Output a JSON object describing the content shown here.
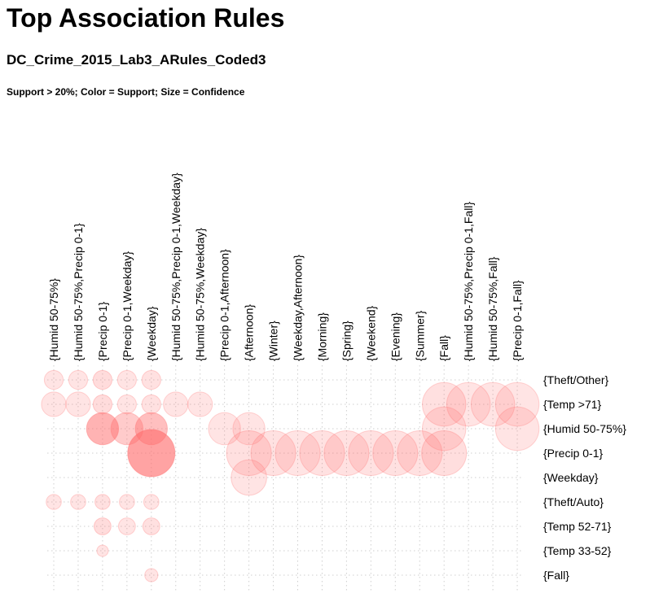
{
  "page": {
    "title": "Top Association Rules",
    "subtitle": "DC_Crime_2015_Lab3_ARules_Coded3",
    "note": "Support > 20%; Color = Support; Size = Confidence"
  },
  "chart_data": {
    "type": "scatter",
    "style": "grouped matrix bubble plot",
    "x_label_position": "top, rotated vertical",
    "y_label_position": "right",
    "grid": "dotted",
    "color": "#ff6b6b",
    "color_encodes": "Support",
    "size_encodes": "Confidence",
    "x_categories": [
      "{Humid 50-75%}",
      "{Humid 50-75%,Precip 0-1}",
      "{Precip 0-1}",
      "{Precip 0-1,Weekday}",
      "{Weekday}",
      "{Humid 50-75%,Precip 0-1,Weekday}",
      "{Humid 50-75%,Weekday}",
      "{Precip 0-1,Afternoon}",
      "{Afternoon}",
      "{Winter}",
      "{Weekday,Afternoon}",
      "{Morning}",
      "{Spring}",
      "{Weekend}",
      "{Evening}",
      "{Summer}",
      "{Fall}",
      "{Humid 50-75%,Precip 0-1,Fall}",
      "{Humid 50-75%,Fall}",
      "{Precip 0-1,Fall}"
    ],
    "y_categories": [
      "{Theft/Other}",
      "{Temp >71}",
      "{Humid 50-75%}",
      "{Precip 0-1}",
      "{Weekday}",
      "{Theft/Auto}",
      "{Temp 52-71}",
      "{Temp 33-52}",
      "{Fall}"
    ],
    "points": [
      {
        "x": 0,
        "y": 0,
        "size": 0.4,
        "color": 0.15
      },
      {
        "x": 1,
        "y": 0,
        "size": 0.4,
        "color": 0.15
      },
      {
        "x": 2,
        "y": 0,
        "size": 0.4,
        "color": 0.25
      },
      {
        "x": 3,
        "y": 0,
        "size": 0.4,
        "color": 0.15
      },
      {
        "x": 4,
        "y": 0,
        "size": 0.4,
        "color": 0.18
      },
      {
        "x": 0,
        "y": 1,
        "size": 0.52,
        "color": 0.15
      },
      {
        "x": 1,
        "y": 1,
        "size": 0.52,
        "color": 0.15
      },
      {
        "x": 2,
        "y": 1,
        "size": 0.4,
        "color": 0.25
      },
      {
        "x": 3,
        "y": 1,
        "size": 0.4,
        "color": 0.15
      },
      {
        "x": 4,
        "y": 1,
        "size": 0.4,
        "color": 0.18
      },
      {
        "x": 5,
        "y": 1,
        "size": 0.52,
        "color": 0.15
      },
      {
        "x": 6,
        "y": 1,
        "size": 0.52,
        "color": 0.15
      },
      {
        "x": 16,
        "y": 1,
        "size": 0.92,
        "color": 0.2
      },
      {
        "x": 17,
        "y": 1,
        "size": 0.92,
        "color": 0.15
      },
      {
        "x": 18,
        "y": 1,
        "size": 0.92,
        "color": 0.15
      },
      {
        "x": 19,
        "y": 1,
        "size": 0.92,
        "color": 0.15
      },
      {
        "x": 2,
        "y": 2,
        "size": 0.68,
        "color": 0.75
      },
      {
        "x": 3,
        "y": 2,
        "size": 0.68,
        "color": 0.45
      },
      {
        "x": 4,
        "y": 2,
        "size": 0.68,
        "color": 0.6
      },
      {
        "x": 7,
        "y": 2,
        "size": 0.68,
        "color": 0.15
      },
      {
        "x": 8,
        "y": 2,
        "size": 0.68,
        "color": 0.15
      },
      {
        "x": 16,
        "y": 2,
        "size": 0.92,
        "color": 0.15
      },
      {
        "x": 19,
        "y": 2,
        "size": 0.92,
        "color": 0.15
      },
      {
        "x": 4,
        "y": 3,
        "size": 1.0,
        "color": 0.95
      },
      {
        "x": 8,
        "y": 3,
        "size": 0.95,
        "color": 0.2
      },
      {
        "x": 9,
        "y": 3,
        "size": 0.95,
        "color": 0.18
      },
      {
        "x": 10,
        "y": 3,
        "size": 0.95,
        "color": 0.15
      },
      {
        "x": 11,
        "y": 3,
        "size": 0.95,
        "color": 0.18
      },
      {
        "x": 12,
        "y": 3,
        "size": 0.95,
        "color": 0.18
      },
      {
        "x": 13,
        "y": 3,
        "size": 0.95,
        "color": 0.18
      },
      {
        "x": 14,
        "y": 3,
        "size": 0.95,
        "color": 0.18
      },
      {
        "x": 15,
        "y": 3,
        "size": 0.95,
        "color": 0.18
      },
      {
        "x": 16,
        "y": 3,
        "size": 0.95,
        "color": 0.22
      },
      {
        "x": 8,
        "y": 4,
        "size": 0.75,
        "color": 0.15
      },
      {
        "x": 0,
        "y": 5,
        "size": 0.32,
        "color": 0.15
      },
      {
        "x": 1,
        "y": 5,
        "size": 0.32,
        "color": 0.15
      },
      {
        "x": 2,
        "y": 5,
        "size": 0.32,
        "color": 0.2
      },
      {
        "x": 3,
        "y": 5,
        "size": 0.32,
        "color": 0.15
      },
      {
        "x": 4,
        "y": 5,
        "size": 0.32,
        "color": 0.15
      },
      {
        "x": 2,
        "y": 6,
        "size": 0.36,
        "color": 0.25
      },
      {
        "x": 3,
        "y": 6,
        "size": 0.36,
        "color": 0.15
      },
      {
        "x": 4,
        "y": 6,
        "size": 0.36,
        "color": 0.2
      },
      {
        "x": 2,
        "y": 7,
        "size": 0.24,
        "color": 0.15
      },
      {
        "x": 4,
        "y": 8,
        "size": 0.28,
        "color": 0.15
      }
    ]
  }
}
